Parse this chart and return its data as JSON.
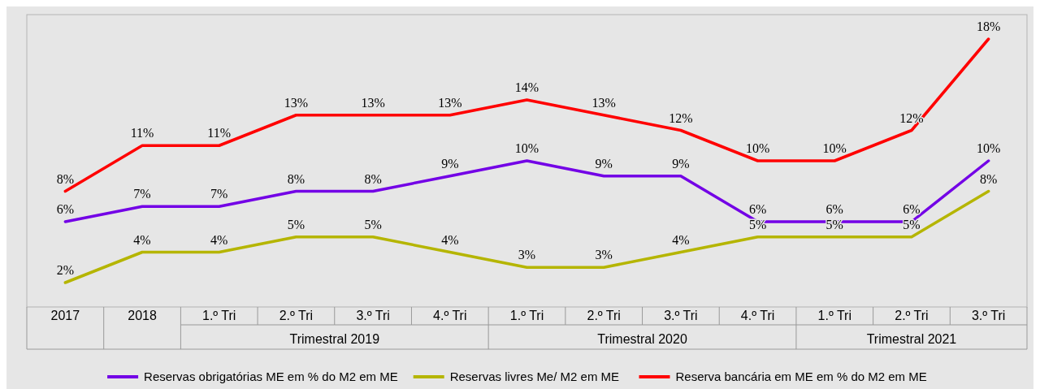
{
  "chart_data": {
    "type": "line",
    "categories": [
      "2017",
      "2018",
      "1.º Tri",
      "2.º Tri",
      "3.º Tri",
      "4.º Tri",
      "1.º Tri",
      "2.º Tri",
      "3.º Tri",
      "4.º Tri",
      "1.º Tri",
      "2.º Tri",
      "3.º Tri"
    ],
    "annotations": [
      "Trimestral 2019",
      "Trimestral 2020",
      "Trimestral 2021"
    ],
    "series": [
      {
        "name": "Reservas obrigatórias ME em % do M2 em ME",
        "color": "#7300e6",
        "values": [
          6,
          7,
          7,
          8,
          8,
          9,
          10,
          9,
          9,
          6,
          6,
          6,
          10
        ],
        "value_labels": [
          "6%",
          "7%",
          "7%",
          "8%",
          "8%",
          "9%",
          "10%",
          "9%",
          "9%",
          "6%",
          "6%",
          "6%",
          "10%"
        ]
      },
      {
        "name": "Reservas livres Me/ M2 em ME",
        "color": "#b5b500",
        "values": [
          2,
          4,
          4,
          5,
          5,
          4,
          3,
          3,
          4,
          5,
          5,
          5,
          8
        ],
        "value_labels": [
          "2%",
          "4%",
          "4%",
          "5%",
          "5%",
          "4%",
          "3%",
          "3%",
          "4%",
          "5%",
          "5%",
          "5%",
          "8%"
        ]
      },
      {
        "name": "Reserva bancária em ME em % do M2 em ME",
        "color": "#ff0000",
        "values": [
          8,
          11,
          11,
          13,
          13,
          13,
          14,
          13,
          12,
          10,
          10,
          12,
          18
        ],
        "value_labels": [
          "8%",
          "11%",
          "11%",
          "13%",
          "13%",
          "13%",
          "14%",
          "13%",
          "12%",
          "10%",
          "10%",
          "12%",
          "18%"
        ]
      }
    ],
    "legend": "bottom",
    "grid": false,
    "marker": "none",
    "line_style": "solid"
  }
}
